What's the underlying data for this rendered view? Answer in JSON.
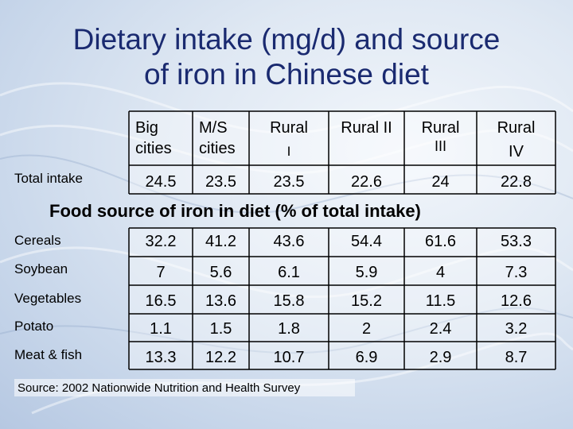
{
  "title_line1": "Dietary intake (mg/d) and source",
  "title_line2": "of iron in Chinese diet",
  "header_labels": {
    "col1_l1": "Big",
    "col1_l2": "cities",
    "col2_l1": "M/S",
    "col2_l2": "cities",
    "col3_l1": "Rural",
    "col3_l2": "I",
    "col4_l1": "Rural II",
    "col5_l1": "Rural",
    "col5_l2": "III",
    "col6_l1": "Rural",
    "col6_l2": "IV"
  },
  "total_intake": {
    "label": "Total intake",
    "values": [
      "24.5",
      "23.5",
      "23.5",
      "22.6",
      "24",
      "22.8"
    ]
  },
  "section_heading": "Food source of iron in diet (% of total intake)",
  "food_rows": [
    {
      "label": "Cereals",
      "values": [
        "32.2",
        "41.2",
        "43.6",
        "54.4",
        "61.6",
        "53.3"
      ]
    },
    {
      "label": "Soybean",
      "values": [
        "7",
        "5.6",
        "6.1",
        "5.9",
        "4",
        "7.3"
      ]
    },
    {
      "label": "Vegetables",
      "values": [
        "16.5",
        "13.6",
        "15.8",
        "15.2",
        "11.5",
        "12.6"
      ]
    },
    {
      "label": "Potato",
      "values": [
        "1.1",
        "1.5",
        "1.8",
        "2",
        "2.4",
        "3.2"
      ]
    },
    {
      "label": "Meat & fish",
      "values": [
        "13.3",
        "12.2",
        "10.7",
        "6.9",
        "2.9",
        "8.7"
      ]
    }
  ],
  "source_note": "Source: 2002 Nationwide Nutrition and Health Survey",
  "colors": {
    "title": "#1a2a70",
    "grid": "#000000",
    "background": "#c7d6ea"
  }
}
